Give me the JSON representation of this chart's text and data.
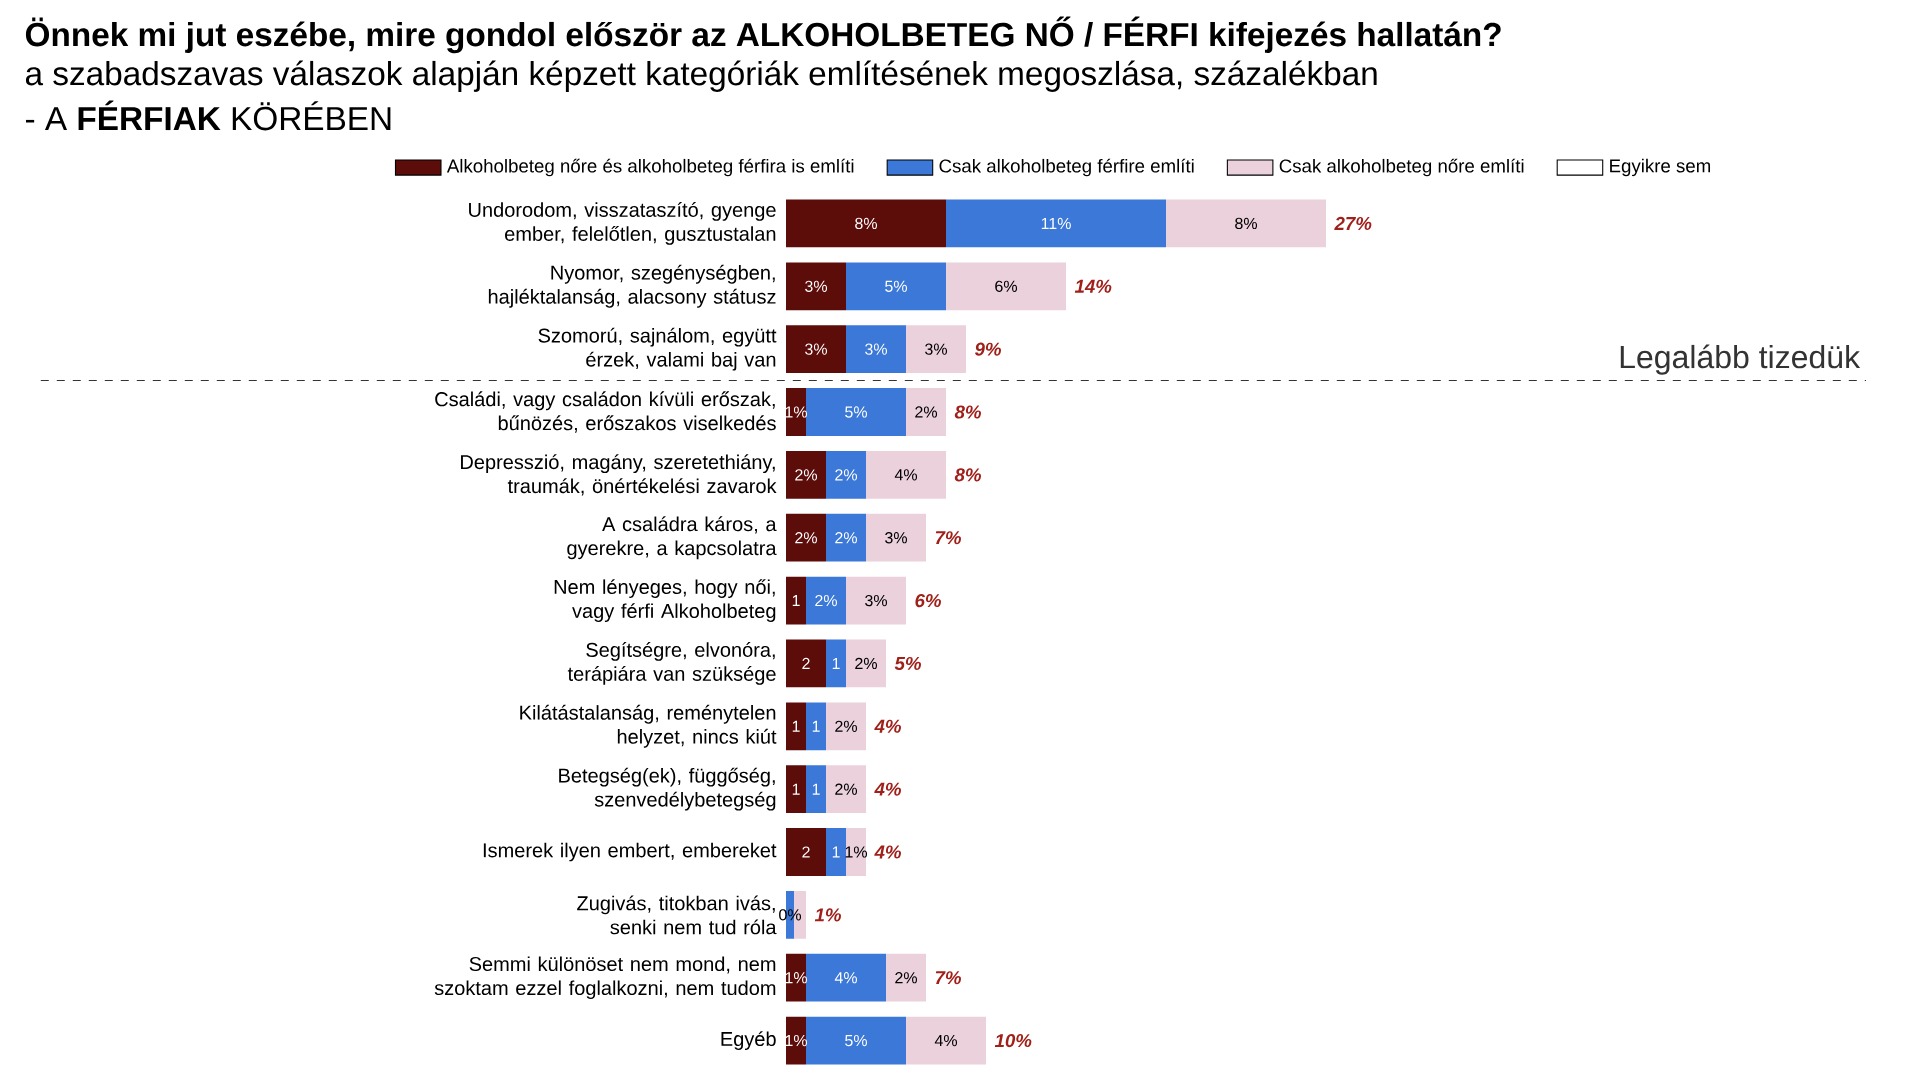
{
  "chart_data": {
    "type": "bar",
    "orientation": "horizontal",
    "stacked": true,
    "title": "Önnek mi jut eszébe, mire gondol először az ALKOHOLBETEG NŐ / FÉRFI kifejezés hallatán?",
    "subtitle": "a szabadszavas válaszok alapján képzett kategóriák említésének megoszlása, százalékban",
    "annotations": [
      "- A **FÉRFIAK** KÖRÉBEN",
      "Legalább tizedük"
    ],
    "categories": [
      "Undorodom, visszataszító, gyenge ember, felelőtlen, gusztustalan",
      "Nyomor, szegénységben, hajléktalanság, alacsony státusz",
      "Szomorú, sajnálom, együtt érzek, valami baj van",
      "Családi, vagy családon kívüli erőszak, bűnözés, erőszakos viselkedés",
      "Depresszió, magány, szeretethiány, traumák, önértékelési zavarok",
      "A családra káros, a gyerekre, a kapcsolatra",
      "Nem lényeges, hogy női, vagy férfi Alkoholbeteg",
      "Segítségre, elvonóra, terápiára van szüksége",
      "Kilátástalanság, reménytelen helyzet, nincs kiút",
      "Betegség(ek), függőség, szenvedélybetegség",
      "Ismerek ilyen embert, embereket",
      "Zugivás, titokban ivás, senki nem tud róla",
      "Semmi különöset nem mond, nem szoktam ezzel foglalkozni, nem tudom",
      "Egyéb"
    ],
    "series": [
      {
        "name": "Alkoholbeteg nőre és alkoholbeteg férfira is említi",
        "color": "#5c0d0a",
        "values": [
          8,
          3,
          3,
          1,
          2,
          2,
          1,
          2,
          1,
          1,
          2,
          null,
          1,
          1
        ],
        "value_labels": [
          "8%",
          "3%",
          "3%",
          "1%",
          "2%",
          "2%",
          "1",
          "2",
          "1",
          "1",
          "2",
          null,
          "1%",
          "1%"
        ]
      },
      {
        "name": "Csak alkoholbeteg férfire említi",
        "color": "#3b78d8",
        "values": [
          11,
          5,
          3,
          5,
          2,
          2,
          2,
          1,
          1,
          1,
          1,
          0.4,
          4,
          5
        ],
        "value_labels": [
          "11%",
          "5%",
          "3%",
          "5%",
          "2%",
          "2%",
          "2%",
          "1",
          "1",
          "1",
          "1",
          "0%",
          "4%",
          "5%"
        ]
      },
      {
        "name": "Csak alkoholbeteg nőre említi",
        "color": "#ead1dc",
        "values": [
          8,
          6,
          3,
          2,
          4,
          3,
          3,
          2,
          2,
          2,
          1,
          0.6,
          2,
          4
        ],
        "value_labels": [
          "8%",
          "6%",
          "3%",
          "2%",
          "4%",
          "3%",
          "3%",
          "2%",
          "2%",
          "2%",
          "1%",
          null,
          "2%",
          "4%"
        ]
      },
      {
        "name": "Egyikre sem",
        "color": "#ffffff",
        "values": [
          null,
          null,
          null,
          null,
          null,
          null,
          null,
          null,
          null,
          null,
          null,
          null,
          null,
          null
        ]
      }
    ],
    "totals": [
      "27%",
      "14%",
      "9%",
      "8%",
      "8%",
      "7%",
      "6%",
      "5%",
      "4%",
      "4%",
      "4%",
      "1%",
      "7%",
      "10%"
    ],
    "legend": "top",
    "tick_labels": "y"
  }
}
